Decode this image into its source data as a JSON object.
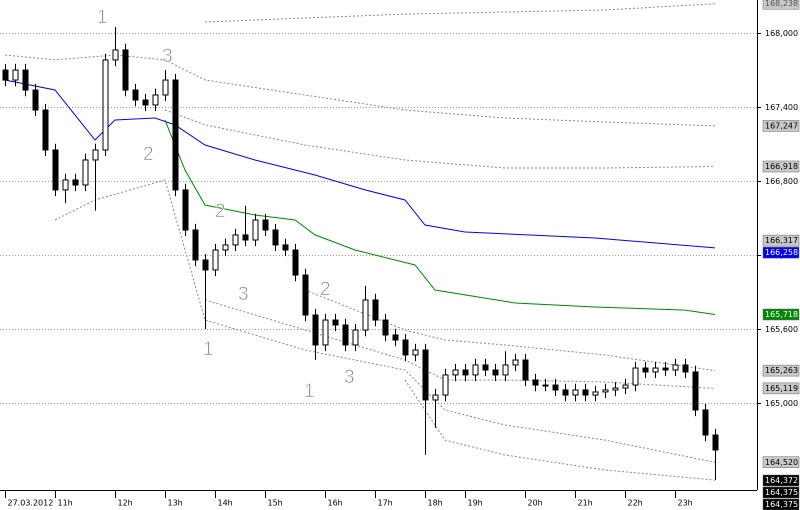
{
  "chart_data": {
    "type": "candlestick",
    "xlim": [
      -0.5,
      75.2
    ],
    "ylim": [
      164295,
      168268
    ],
    "xticks": [
      {
        "value": 0,
        "label": "27.03.2012"
      },
      {
        "value": 5,
        "label": "11h"
      },
      {
        "value": 11,
        "label": "12h"
      },
      {
        "value": 16,
        "label": "13h"
      },
      {
        "value": 21,
        "label": "14h"
      },
      {
        "value": 26,
        "label": "15h"
      },
      {
        "value": 32,
        "label": "16h"
      },
      {
        "value": 37,
        "label": "17h"
      },
      {
        "value": 42,
        "label": "18h"
      },
      {
        "value": 46,
        "label": "19h"
      },
      {
        "value": 52,
        "label": "20h"
      },
      {
        "value": 57,
        "label": "21h"
      },
      {
        "value": 62,
        "label": "22h"
      },
      {
        "value": 67,
        "label": "23h"
      }
    ],
    "yticks": [
      {
        "value": 168000,
        "label": "168,000"
      },
      {
        "value": 167400,
        "label": "167,400"
      },
      {
        "value": 166800,
        "label": "166,800"
      },
      {
        "value": 166200,
        "label": "166,200"
      },
      {
        "value": 165600,
        "label": "165,600"
      },
      {
        "value": 165000,
        "label": "165,000"
      }
    ],
    "grid": true,
    "up_color": "#ffffff",
    "down_color": "#000000",
    "open": [
      167700,
      167619,
      167700,
      167538,
      167376,
      167052,
      166728,
      166809,
      166768,
      166971,
      167052,
      167782,
      167863,
      167538,
      167457,
      167417,
      167498,
      167619,
      166728,
      166403,
      166160,
      166079,
      166241,
      166282,
      166363,
      166322,
      166484,
      166403,
      166282,
      166241,
      166038,
      165714,
      165471,
      165673,
      165633,
      165471,
      165592,
      165836,
      165673,
      165552,
      165511,
      165390,
      165430,
      165025,
      165065,
      165228,
      165268,
      165228,
      165309,
      165268,
      165228,
      165309,
      165349,
      165187,
      165146,
      165146,
      165106,
      165065,
      165106,
      165065,
      165090,
      165106,
      165122,
      165146,
      165284,
      165252,
      165284,
      165268,
      165309,
      165252,
      164944,
      164741
    ],
    "high": [
      167750,
      167750,
      167750,
      167588,
      167426,
      167102,
      166859,
      166859,
      167021,
      167102,
      167832,
      168050,
      167913,
      167588,
      167507,
      167548,
      167700,
      167669,
      166778,
      166453,
      166210,
      166291,
      166332,
      166413,
      166600,
      166534,
      166534,
      166453,
      166332,
      166291,
      166088,
      165764,
      165723,
      165723,
      165683,
      165642,
      165950,
      165886,
      165723,
      165602,
      165561,
      165480,
      165480,
      165115,
      165278,
      165318,
      165318,
      165359,
      165359,
      165318,
      165420,
      165399,
      165399,
      165237,
      165196,
      165196,
      165156,
      165156,
      165156,
      165140,
      165156,
      165172,
      165196,
      165334,
      165334,
      165334,
      165334,
      165359,
      165359,
      165302,
      164994,
      164791
    ],
    "low": [
      167569,
      167569,
      167488,
      167326,
      167002,
      166678,
      166620,
      166718,
      166718,
      166560,
      167002,
      167732,
      167488,
      167407,
      167367,
      167367,
      167448,
      166678,
      166353,
      166110,
      165600,
      166029,
      166191,
      166232,
      166272,
      166272,
      166353,
      166232,
      166191,
      165988,
      165664,
      165350,
      165421,
      165583,
      165421,
      165421,
      165542,
      165623,
      165502,
      165461,
      165340,
      165340,
      164580,
      164800,
      165015,
      165178,
      165178,
      165178,
      165218,
      165178,
      165178,
      165259,
      165137,
      165096,
      165096,
      165056,
      165015,
      165015,
      165015,
      165015,
      165040,
      165056,
      165072,
      165096,
      165202,
      165202,
      165218,
      165218,
      165202,
      164894,
      164691,
      164375
    ],
    "close": [
      167619,
      167700,
      167538,
      167376,
      167052,
      166728,
      166809,
      166768,
      166971,
      167052,
      167782,
      167863,
      167538,
      167457,
      167417,
      167498,
      167619,
      166728,
      166403,
      166160,
      166079,
      166241,
      166282,
      166363,
      166322,
      166484,
      166403,
      166282,
      166241,
      166038,
      165714,
      165471,
      165673,
      165633,
      165471,
      165592,
      165836,
      165673,
      165552,
      165511,
      165390,
      165430,
      165025,
      165065,
      165228,
      165268,
      165228,
      165309,
      165268,
      165228,
      165309,
      165349,
      165187,
      165146,
      165146,
      165106,
      165065,
      165106,
      165065,
      165090,
      165106,
      165122,
      165146,
      165284,
      165252,
      165284,
      165268,
      165309,
      165252,
      164944,
      164741,
      164620
    ],
    "lines": [
      {
        "color": "#0000ee",
        "style": "solid",
        "x": [
          0,
          5,
          9,
          11,
          15,
          17,
          20,
          25,
          31,
          36,
          40,
          42,
          46,
          59,
          71
        ],
        "values": [
          167619,
          167538,
          167133,
          167295,
          167311,
          167255,
          167092,
          166971,
          166849,
          166728,
          166646,
          166444,
          166387,
          166338,
          166258
        ]
      },
      {
        "color": "#008800",
        "style": "solid",
        "x": [
          16,
          18,
          20,
          25,
          29,
          31,
          35,
          41,
          43,
          51,
          59,
          68,
          71
        ],
        "values": [
          167295,
          166890,
          166606,
          166525,
          166484,
          166363,
          166241,
          166119,
          165917,
          165811,
          165779,
          165754,
          165718
        ]
      },
      {
        "color": "#888888",
        "style": "dotted",
        "x": [
          20,
          30,
          40,
          50,
          60,
          71
        ],
        "values": [
          168090,
          168122,
          168154,
          168171,
          168187,
          168238
        ]
      },
      {
        "color": "#888888",
        "style": "dotted",
        "x": [
          0,
          5,
          11,
          16,
          20,
          30,
          40,
          50,
          60,
          71
        ],
        "values": [
          167822,
          167782,
          167822,
          167782,
          167619,
          167498,
          167376,
          167311,
          167279,
          167247
        ]
      },
      {
        "color": "#888888",
        "style": "dotted",
        "x": [
          16,
          20,
          30,
          40,
          50,
          60,
          71
        ],
        "values": [
          167376,
          167255,
          167092,
          166971,
          166906,
          166906,
          166918
        ]
      },
      {
        "color": "#888888",
        "style": "dotted",
        "x": [
          30,
          35,
          40,
          44,
          50,
          60,
          71
        ],
        "values": [
          165917,
          165755,
          165592,
          165511,
          165471,
          165390,
          165263
        ]
      },
      {
        "color": "#888888",
        "style": "dotted",
        "x": [
          20,
          30,
          40,
          44,
          50,
          60,
          71
        ],
        "values": [
          165836,
          165592,
          165349,
          165187,
          165187,
          165171,
          165119
        ]
      },
      {
        "color": "#888888",
        "style": "dotted",
        "x": [
          5,
          9,
          16,
          20,
          30,
          40,
          44,
          50,
          60,
          71
        ],
        "values": [
          166484,
          166646,
          166809,
          165673,
          165430,
          165268,
          164944,
          164822,
          164700,
          164520
        ]
      },
      {
        "color": "#888888",
        "style": "dotted",
        "x": [
          40,
          44,
          50,
          60,
          71
        ],
        "values": [
          165187,
          164700,
          164579,
          164457,
          164375
        ]
      }
    ],
    "price_labels": [
      {
        "value": 168238,
        "label": "168,238",
        "background": "#c8c8c8",
        "color": "#555555"
      },
      {
        "value": 167247,
        "label": "167,247",
        "background": "#c8c8c8",
        "color": "#000000"
      },
      {
        "value": 166918,
        "label": "166,918",
        "background": "#c8c8c8",
        "color": "#000000"
      },
      {
        "value": 166317,
        "label": "166,317",
        "background": "#c8c8c8",
        "color": "#000000"
      },
      {
        "value": 166258,
        "label": "166,258",
        "background": "#0000ee",
        "color": "#ffffff"
      },
      {
        "value": 165718,
        "label": "165,718",
        "background": "#008800",
        "color": "#ffffff"
      },
      {
        "value": 165263,
        "label": "165,263",
        "background": "#c8c8c8",
        "color": "#000000"
      },
      {
        "value": 165119,
        "label": "165,119",
        "background": "#c8c8c8",
        "color": "#000000"
      },
      {
        "value": 164520,
        "label": "164,520",
        "background": "#c8c8c8",
        "color": "#000000"
      },
      {
        "value": 164372,
        "label": "164,372",
        "background": "#000000",
        "color": "#ffffff"
      },
      {
        "value": 164375,
        "label": "164,375",
        "background": "#000000",
        "color": "#ffffff"
      },
      {
        "value": 164375,
        "label": "164,375",
        "background": "#000000",
        "color": "#ffffff"
      }
    ],
    "annotations": [
      "1",
      "3",
      "2",
      "2",
      "3",
      "1",
      "2",
      "3",
      "1"
    ]
  }
}
